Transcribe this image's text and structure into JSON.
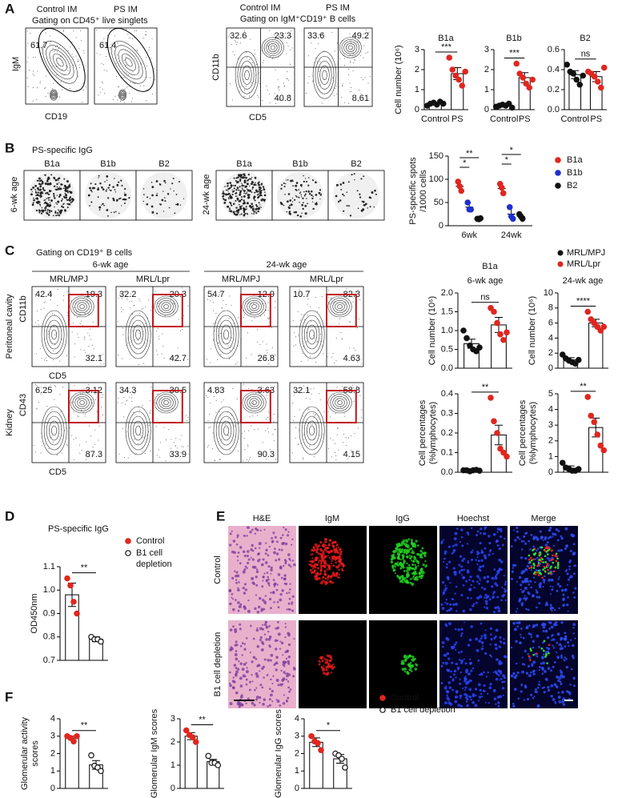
{
  "panel_labels": [
    "A",
    "B",
    "C",
    "D",
    "E",
    "F"
  ],
  "flow_groups": [
    {
      "title": "Gating on CD45⁺ live singlets",
      "y_axis": "IgM",
      "x_axis": "CD19",
      "plots": [
        {
          "name": "Control IM",
          "gates": [
            61.7
          ]
        },
        {
          "name": "PS IM",
          "gates": [
            61.4
          ]
        }
      ]
    },
    {
      "title": "Gating on IgM⁺CD19⁺ B cells",
      "y_axis": "CD11b",
      "x_axis": "CD5",
      "plots": [
        {
          "name": "Control IM",
          "gates": [
            32.6,
            23.3,
            40.8
          ]
        },
        {
          "name": "PS IM",
          "gates": [
            33.6,
            49.2,
            8.61
          ]
        }
      ]
    },
    {
      "title": "Gating on CD19⁺ B cells",
      "ages": [
        "6-wk age",
        "24-wk age"
      ],
      "strains": [
        "MRL/MPJ",
        "MRL/Lpr",
        "MRL/MPJ",
        "MRL/Lpr"
      ],
      "rows": [
        {
          "label": "Peritoneal cavity",
          "y_axis": "CD11b",
          "x_axis": "CD5",
          "gates": [
            [
              42.4,
              19.3,
              32.1
            ],
            [
              32.2,
              20.3,
              42.7
            ],
            [
              54.7,
              12.9,
              26.8
            ],
            [
              10.7,
              82.3,
              4.63
            ]
          ]
        },
        {
          "label": "Kidney",
          "y_axis": "CD43",
          "x_axis": "CD5",
          "gates": [
            [
              6.25,
              3.12,
              87.3
            ],
            [
              34.3,
              30.5,
              33.9
            ],
            [
              4.83,
              3.63,
              90.3
            ],
            [
              32.1,
              58.8,
              4.15
            ]
          ]
        }
      ]
    }
  ],
  "elispot": {
    "title": "PS-specific IgG",
    "rows": [
      {
        "label": "6-wk age",
        "wells": [
          "B1a",
          "B1b",
          "B2"
        ]
      },
      {
        "label": "24-wk age",
        "wells": [
          "B1a",
          "B1b",
          "B2"
        ]
      }
    ]
  },
  "panel_c_right": {
    "title": "B1a",
    "legend": [
      {
        "name": "MRL/MPJ",
        "color": "#111111"
      },
      {
        "name": "MRL/Lpr",
        "color": "#e0261f"
      }
    ]
  },
  "histology": {
    "columns": [
      "H&E",
      "IgM",
      "IgG",
      "Hoechst",
      "Merge"
    ],
    "rows": [
      "Control",
      "B1 cell depletion"
    ]
  },
  "chart_data": [
    {
      "type": "bar",
      "title": "B1a",
      "ylabel": "Cell number (10⁶)",
      "categories": [
        "Control",
        "PS"
      ],
      "values": [
        0.3,
        1.8
      ],
      "errors": [
        0.05,
        0.3
      ],
      "points": [
        [
          0.2,
          0.3,
          0.35,
          0.25,
          0.4,
          0.3
        ],
        [
          2.6,
          2.0,
          1.7,
          1.5,
          1.2,
          1.9
        ]
      ],
      "colors": [
        "#111111",
        "#e0261f"
      ],
      "markers": [
        "filled",
        "filled"
      ],
      "ylim": [
        0,
        3
      ],
      "yticks": [
        0,
        1,
        2,
        3
      ],
      "significance": "***"
    },
    {
      "type": "bar",
      "title": "B1b",
      "categories": [
        "Control",
        "PS"
      ],
      "values": [
        0.2,
        1.6
      ],
      "errors": [
        0.04,
        0.25
      ],
      "points": [
        [
          0.15,
          0.2,
          0.25,
          0.2,
          0.3,
          0.1
        ],
        [
          2.3,
          1.8,
          1.6,
          1.3,
          1.1,
          1.5
        ]
      ],
      "colors": [
        "#111111",
        "#e0261f"
      ],
      "markers": [
        "filled",
        "filled"
      ],
      "ylim": [
        0,
        3
      ],
      "yticks": [
        0,
        1,
        2,
        3
      ],
      "significance": "***"
    },
    {
      "type": "bar",
      "title": "B2",
      "categories": [
        "Control",
        "PS"
      ],
      "values": [
        0.35,
        0.33
      ],
      "errors": [
        0.04,
        0.05
      ],
      "points": [
        [
          0.45,
          0.38,
          0.36,
          0.3,
          0.25,
          0.34
        ],
        [
          0.38,
          0.36,
          0.33,
          0.28,
          0.22,
          0.42
        ]
      ],
      "colors": [
        "#111111",
        "#e0261f"
      ],
      "markers": [
        "filled",
        "filled"
      ],
      "ylim": [
        0,
        0.6
      ],
      "yticks": [
        {
          "value": 0,
          "label": "0.0"
        },
        0.2,
        0.4,
        0.6
      ],
      "significance": "ns"
    },
    {
      "type": "dotplot",
      "ylabel": [
        "PS-specific spots",
        "/1000 cells"
      ],
      "categories": [
        "6wk",
        "24wk"
      ],
      "series": [
        {
          "name": "B1a",
          "color": "#e0261f",
          "values": [
            85,
            80
          ],
          "errors": [
            8,
            10
          ],
          "points": [
            [
              95,
              85,
              75
            ],
            [
              90,
              82,
              70
            ]
          ]
        },
        {
          "name": "B1b",
          "color": "#1f2fd0",
          "values": [
            40,
            25
          ],
          "errors": [
            10,
            12
          ],
          "points": [
            [
              50,
              35,
              35
            ],
            [
              40,
              20,
              15
            ]
          ]
        },
        {
          "name": "B2",
          "color": "#111111",
          "values": [
            15,
            20
          ],
          "errors": [
            2,
            5
          ],
          "points": [
            [
              15,
              14,
              16
            ],
            [
              25,
              20,
              15
            ]
          ]
        }
      ],
      "ylim": [
        0,
        150
      ],
      "yticks": [
        0,
        50,
        100,
        150
      ],
      "significance": [
        "**",
        "*",
        "*",
        "*"
      ]
    },
    {
      "type": "bar",
      "title": "6-wk age",
      "ylabel": "Cell number (10⁶)",
      "categories": [
        null,
        null
      ],
      "values": [
        0.65,
        1.15
      ],
      "errors": [
        0.12,
        0.2
      ],
      "points": [
        [
          1.0,
          0.8,
          0.6,
          0.5,
          0.45,
          0.55
        ],
        [
          1.6,
          1.5,
          1.2,
          0.9,
          0.75,
          0.95
        ]
      ],
      "colors": [
        "#111111",
        "#e0261f"
      ],
      "markers": [
        "filled",
        "filled"
      ],
      "ylim": [
        0,
        2
      ],
      "yticks": [
        {
          "value": 0,
          "label": "0.0"
        },
        0.5,
        {
          "value": 1,
          "label": "1.0"
        },
        1.5,
        {
          "value": 2,
          "label": "2.0"
        }
      ],
      "significance": "ns"
    },
    {
      "type": "bar",
      "title": "24-wk age",
      "ylabel": "Cell number (10⁶)",
      "categories": [
        null,
        null
      ],
      "values": [
        1.1,
        6.0
      ],
      "errors": [
        0.3,
        0.5
      ],
      "points": [
        [
          1.8,
          1.3,
          1.0,
          0.8,
          0.6,
          1.1
        ],
        [
          7.5,
          6.5,
          6.0,
          5.5,
          5.0,
          5.5
        ]
      ],
      "colors": [
        "#111111",
        "#e0261f"
      ],
      "markers": [
        "filled",
        "filled"
      ],
      "ylim": [
        0,
        10
      ],
      "yticks": [
        0,
        2,
        4,
        6,
        8,
        10
      ],
      "significance": "****"
    },
    {
      "type": "bar",
      "ylabel": [
        "Cell percentages",
        "(%lymphocytes)"
      ],
      "categories": [
        null,
        null
      ],
      "values": [
        0.01,
        0.19
      ],
      "errors": [
        0.003,
        0.05
      ],
      "points": [
        [
          0.01,
          0.01,
          0.005,
          0.01,
          0.012,
          0.008
        ],
        [
          0.38,
          0.26,
          0.2,
          0.12,
          0.1,
          0.08
        ]
      ],
      "colors": [
        "#111111",
        "#e0261f"
      ],
      "markers": [
        "filled",
        "filled"
      ],
      "ylim": [
        0,
        0.4
      ],
      "yticks": [
        {
          "value": 0,
          "label": "0.0"
        },
        0.1,
        0.2,
        0.3,
        0.4
      ],
      "significance": "**"
    },
    {
      "type": "bar",
      "ylabel": [
        "Cell percentages",
        "(%lymphocytes)"
      ],
      "categories": [
        null,
        null
      ],
      "values": [
        0.25,
        2.85
      ],
      "errors": [
        0.15,
        0.6
      ],
      "points": [
        [
          0.6,
          0.3,
          0.2,
          0.1,
          0.1,
          0.2
        ],
        [
          4.8,
          3.6,
          3.2,
          2.4,
          1.7,
          1.4
        ]
      ],
      "colors": [
        "#111111",
        "#e0261f"
      ],
      "markers": [
        "filled",
        "filled"
      ],
      "ylim": [
        0,
        5
      ],
      "yticks": [
        0,
        1,
        2,
        3,
        4,
        5
      ],
      "significance": "**"
    },
    {
      "type": "bar",
      "title": "PS-specific IgG",
      "ylabel": "OD450nm",
      "categories": [
        null,
        null
      ],
      "values": [
        0.98,
        0.79
      ],
      "errors": [
        0.05,
        0.01
      ],
      "points": [
        [
          1.05,
          1.02,
          0.95,
          0.9
        ],
        [
          0.8,
          0.79,
          0.79,
          0.78
        ]
      ],
      "colors": [
        "#e0261f",
        "#111111"
      ],
      "markers": [
        "filled",
        "open"
      ],
      "ylim": [
        0.7,
        1.1
      ],
      "yticks": [
        0.7,
        0.8,
        0.9,
        {
          "value": 1,
          "label": "1.0"
        },
        1.1
      ],
      "significance": "**",
      "legend": [
        {
          "name": "Control",
          "color": "#e0261f",
          "marker": "filled"
        },
        {
          "name": [
            "B1 cell",
            "depletion"
          ],
          "color": "#111111",
          "marker": "open"
        }
      ]
    },
    {
      "type": "bar",
      "ylabel": [
        "Glomerular activity",
        "scores"
      ],
      "categories": [
        null,
        null
      ],
      "values": [
        2.9,
        1.35
      ],
      "errors": [
        0.1,
        0.25
      ],
      "points": [
        [
          3.0,
          2.9,
          2.7,
          3.0
        ],
        [
          1.9,
          1.3,
          1.2,
          1.0
        ]
      ],
      "colors": [
        "#e0261f",
        "#111111"
      ],
      "markers": [
        "filled",
        "open"
      ],
      "ylim": [
        0,
        4
      ],
      "yticks": [
        0,
        1,
        2,
        3,
        4
      ],
      "significance": "**"
    },
    {
      "type": "bar",
      "ylabel": "Glomerular IgM scores",
      "categories": [
        null,
        null
      ],
      "values": [
        2.25,
        1.15
      ],
      "errors": [
        0.15,
        0.1
      ],
      "points": [
        [
          2.5,
          2.3,
          2.2,
          2.0
        ],
        [
          1.4,
          1.1,
          1.1,
          1.0
        ]
      ],
      "colors": [
        "#e0261f",
        "#111111"
      ],
      "markers": [
        "filled",
        "open"
      ],
      "ylim": [
        0,
        3
      ],
      "yticks": [
        0,
        1,
        2,
        3
      ],
      "significance": "**"
    },
    {
      "type": "bar",
      "ylabel": "Glomerular IgG scores",
      "categories": [
        null,
        null
      ],
      "values": [
        2.65,
        1.7
      ],
      "errors": [
        0.25,
        0.25
      ],
      "points": [
        [
          3.0,
          2.7,
          2.6,
          2.2
        ],
        [
          2.0,
          1.9,
          1.7,
          1.2
        ]
      ],
      "colors": [
        "#e0261f",
        "#111111"
      ],
      "markers": [
        "filled",
        "open"
      ],
      "ylim": [
        0,
        4
      ],
      "yticks": [
        0,
        1,
        2,
        3,
        4
      ],
      "significance": "*",
      "legend": [
        {
          "name": "Control",
          "color": "#e0261f",
          "marker": "filled"
        },
        {
          "name": "B1 cell depletion",
          "color": "#111111",
          "marker": "open"
        }
      ]
    }
  ]
}
